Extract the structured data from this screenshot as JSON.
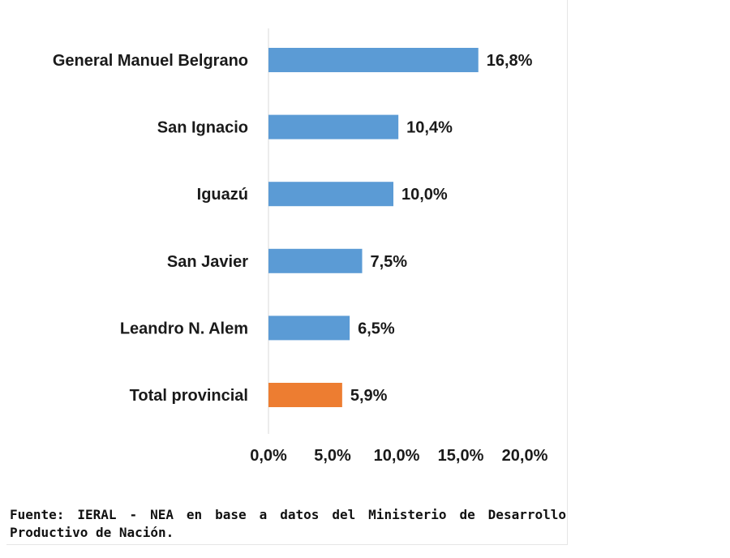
{
  "chart_data": {
    "type": "bar",
    "orientation": "horizontal",
    "categories": [
      "General Manuel Belgrano",
      "San Ignacio",
      "Iguazú",
      "San Javier",
      "Leandro N. Alem",
      "Total provincial"
    ],
    "values": [
      16.8,
      10.4,
      10.0,
      7.5,
      6.5,
      5.9
    ],
    "value_labels": [
      "16,8%",
      "10,4%",
      "10,0%",
      "7,5%",
      "6,5%",
      "5,9%"
    ],
    "bar_colors": [
      "#5b9bd5",
      "#5b9bd5",
      "#5b9bd5",
      "#5b9bd5",
      "#5b9bd5",
      "#ed7d31"
    ],
    "xlim": [
      0,
      20
    ],
    "x_ticks": [
      0,
      5,
      10,
      15,
      20
    ],
    "x_tick_labels": [
      "0,0%",
      "5,0%",
      "10,0%",
      "15,0%",
      "20,0%"
    ],
    "grid": false,
    "legend": "none",
    "title": "",
    "xlabel": "",
    "ylabel": ""
  },
  "source_note": "Fuente: IERAL - NEA en base a datos del Ministerio de Desarrollo Productivo de Nación."
}
